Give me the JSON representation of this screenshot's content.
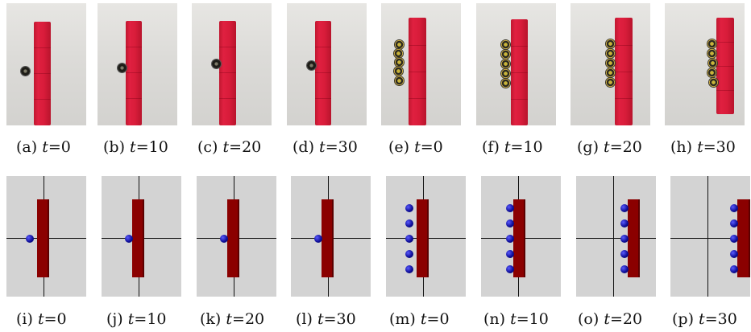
{
  "figure": {
    "top_row": [
      {
        "label": "(a)",
        "time": "t",
        "value": "=0"
      },
      {
        "label": "(b)",
        "time": "t",
        "value": "=10"
      },
      {
        "label": "(c)",
        "time": "t",
        "value": "=20"
      },
      {
        "label": "(d)",
        "time": "t",
        "value": "=30"
      },
      {
        "label": "(e)",
        "time": "t",
        "value": "=0"
      },
      {
        "label": "(f)",
        "time": "t",
        "value": "=10"
      },
      {
        "label": "(g)",
        "time": "t",
        "value": "=20"
      },
      {
        "label": "(h)",
        "time": "t",
        "value": "=30"
      }
    ],
    "bottom_row": [
      {
        "label": "(i)",
        "time": "t",
        "value": "=0"
      },
      {
        "label": "(j)",
        "time": "t",
        "value": "=10"
      },
      {
        "label": "(k)",
        "time": "t",
        "value": "=20"
      },
      {
        "label": "(l)",
        "time": "t",
        "value": "=30"
      },
      {
        "label": "(m)",
        "time": "t",
        "value": "=0"
      },
      {
        "label": "(n)",
        "time": "t",
        "value": "=10"
      },
      {
        "label": "(o)",
        "time": "t",
        "value": "=20"
      },
      {
        "label": "(p)",
        "time": "t",
        "value": "=30"
      }
    ]
  },
  "colors": {
    "photo_box": "#d81c3a",
    "sim_box": "#8b0000",
    "sim_robot": "#10109a",
    "sim_background": "#d3d3d3"
  }
}
